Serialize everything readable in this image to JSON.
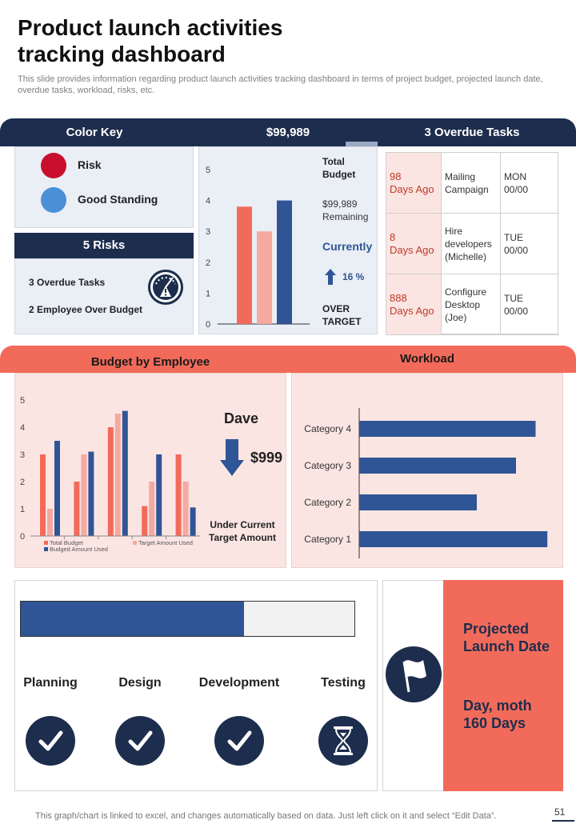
{
  "header": {
    "title_line1": "Product launch activities",
    "title_line2": "tracking dashboard",
    "subtitle": "This slide provides information regarding product launch activities tracking dashboard in terms of project budget, projected launch date, overdue tasks, workload, risks, etc."
  },
  "top_band": {
    "color_key_label": "Color Key",
    "budget_label": "$99,989",
    "overdue_label": "3 Overdue Tasks"
  },
  "color_key": {
    "items": [
      {
        "label": "Risk",
        "color": "#c8102e"
      },
      {
        "label": "Good Standing",
        "color": "#4a90d9"
      }
    ]
  },
  "risks": {
    "header": "5 Risks",
    "line1": "3 Overdue Tasks",
    "line2": "2 Employee  Over Budget",
    "icon": "gauge-warning-icon"
  },
  "budget": {
    "total_label_1": "Total",
    "total_label_2": "Budget",
    "remaining_1": "$99,989",
    "remaining_2": "Remaining",
    "currently": "Currently",
    "change": "16 %",
    "over_1": "OVER",
    "over_2": "TARGET"
  },
  "overdue_tasks": [
    {
      "age_1": "98",
      "age_2": "Days Ago",
      "task": [
        "Mailing",
        "Campaign"
      ],
      "due": [
        "MON",
        "00/00"
      ]
    },
    {
      "age_1": "8",
      "age_2": "Days Ago",
      "task": [
        "Hire",
        "developers",
        "(Michelle)"
      ],
      "due": [
        "TUE",
        "00/00"
      ]
    },
    {
      "age_1": "888",
      "age_2": "Days Ago",
      "task": [
        "Configure",
        "Desktop",
        "(Joe)"
      ],
      "due": [
        "TUE",
        "00/00"
      ]
    }
  ],
  "middle_band": {
    "budget_by_employee": "Budget by Employee",
    "workload": "Workload"
  },
  "employee_callout": {
    "name": "Dave",
    "amount": "$999",
    "note_1": "Under Current",
    "note_2": "Target Amount"
  },
  "progress": {
    "fill_fraction": 0.67,
    "phases": [
      {
        "label": "Planning",
        "status": "check-icon"
      },
      {
        "label": "Design",
        "status": "check-icon"
      },
      {
        "label": "Development",
        "status": "check-icon"
      },
      {
        "label": "Testing",
        "status": "hourglass-icon"
      }
    ]
  },
  "launch": {
    "title_1": "Projected",
    "title_2": "Launch Date",
    "date_1": "Day, moth",
    "date_2": "160 Days",
    "icon": "flag-icon"
  },
  "footer": {
    "note": "This graph/chart is linked to excel, and changes automatically based on data. Just left click on it and select “Edit Data”.",
    "page": "51"
  },
  "colors": {
    "navy": "#1d2d4d",
    "salmon": "#f26b5a",
    "pink_light": "#f5a9a0",
    "blue_bar": "#2f5596"
  },
  "chart_data": [
    {
      "type": "bar",
      "categories": [
        "",
        "",
        ""
      ],
      "values": [
        3.8,
        3.0,
        4.0
      ],
      "colors": [
        "#f26b5a",
        "#f5a9a0",
        "#2f5596"
      ],
      "ylim": [
        0,
        5
      ],
      "yticks": [
        "0",
        "1",
        "2",
        "3",
        "4",
        "5"
      ]
    },
    {
      "type": "bar",
      "categories": [
        "",
        "",
        "",
        "",
        ""
      ],
      "series": [
        {
          "name": "Total Budget",
          "values": [
            3.0,
            2.0,
            4.0,
            1.1,
            3.0
          ],
          "color": "#f26b5a"
        },
        {
          "name": "Target Amount Used",
          "values": [
            1.0,
            3.0,
            4.5,
            2.0,
            2.0
          ],
          "color": "#f5a9a0"
        },
        {
          "name": "Budged  Amount Used",
          "values": [
            3.5,
            3.1,
            4.6,
            3.0,
            1.05
          ],
          "color": "#2f5596"
        }
      ],
      "ylim": [
        0,
        5
      ],
      "yticks": [
        "0",
        "1",
        "2",
        "3",
        "4",
        "5"
      ],
      "legend": "bottom"
    },
    {
      "type": "bar",
      "orientation": "horizontal",
      "categories": [
        "Category 4",
        "Category 3",
        "Category  2",
        "Category 1"
      ],
      "values": [
        4.5,
        4.0,
        3.0,
        4.8
      ],
      "xlim": [
        0,
        5
      ],
      "color": "#2f5596"
    }
  ]
}
